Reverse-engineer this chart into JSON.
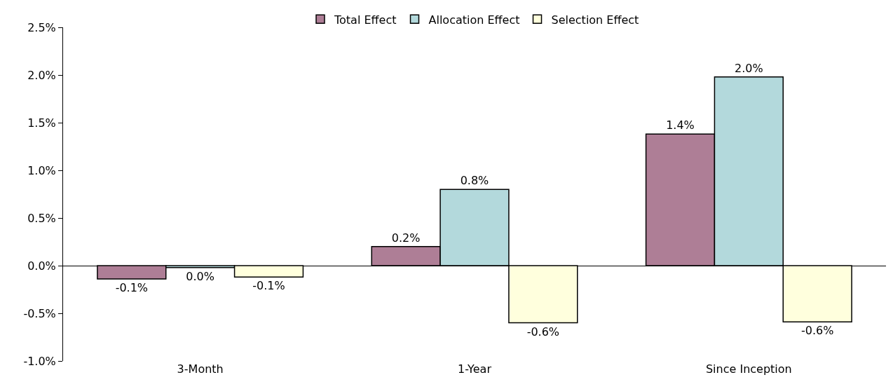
{
  "chart_data": {
    "type": "bar",
    "categories": [
      "3-Month",
      "1-Year",
      "Since Inception"
    ],
    "series": [
      {
        "name": "Total Effect",
        "color": "#ae7e96",
        "values": [
          -0.14,
          0.2,
          1.38
        ],
        "value_labels": [
          "-0.1%",
          "0.2%",
          "1.4%"
        ]
      },
      {
        "name": "Allocation Effect",
        "color": "#b3d9dc",
        "values": [
          -0.02,
          0.8,
          1.98
        ],
        "value_labels": [
          "0.0%",
          "0.8%",
          "2.0%"
        ]
      },
      {
        "name": "Selection Effect",
        "color": "#ffffdd",
        "values": [
          -0.12,
          -0.6,
          -0.59
        ],
        "value_labels": [
          "-0.1%",
          "-0.6%",
          "-0.6%"
        ]
      }
    ],
    "ylim": [
      -1,
      2.5
    ],
    "yticks": [
      {
        "value": -1,
        "label": "-1.0%"
      },
      {
        "value": -0.5,
        "label": "-0.5%"
      },
      {
        "value": 0,
        "label": "0.0%"
      },
      {
        "value": 0.5,
        "label": "0.5%"
      },
      {
        "value": 1,
        "label": "1.0%"
      },
      {
        "value": 1.5,
        "label": "1.5%"
      },
      {
        "value": 2,
        "label": "2.0%"
      },
      {
        "value": 2.5,
        "label": "2.5%"
      }
    ],
    "legend": "top"
  }
}
